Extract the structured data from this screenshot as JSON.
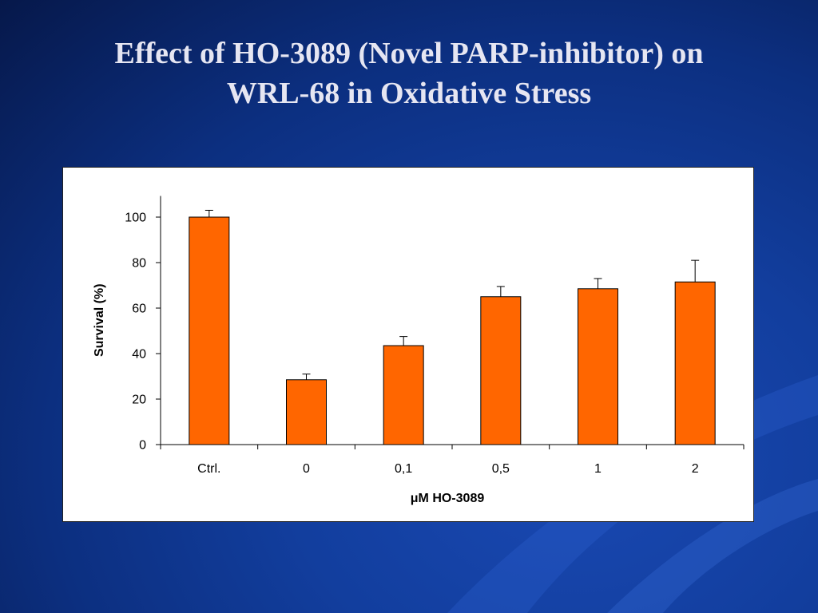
{
  "slide": {
    "title_line1": "Effect of  HO-3089 (Novel PARP-inhibitor) on",
    "title_line2": "WRL-68 in Oxidative Stress"
  },
  "colors": {
    "bar_fill": "#ff6600",
    "bar_stroke": "#000000",
    "background": "#123e9e",
    "title_text": "#e6e6f2"
  },
  "chart_data": {
    "type": "bar",
    "categories": [
      "Ctrl.",
      "0",
      "0,1",
      "0,5",
      "1",
      "2"
    ],
    "values": [
      100,
      28.5,
      43.5,
      65,
      68.5,
      71.5
    ],
    "error_upper": [
      3,
      2.5,
      4,
      4.5,
      4.5,
      9.5
    ],
    "xlabel": "μM HO-3089",
    "ylabel": "Survival (%)",
    "ylim": [
      0,
      110
    ],
    "yticks": [
      0,
      20,
      40,
      60,
      80,
      100
    ],
    "grid": false,
    "legend": "none"
  }
}
